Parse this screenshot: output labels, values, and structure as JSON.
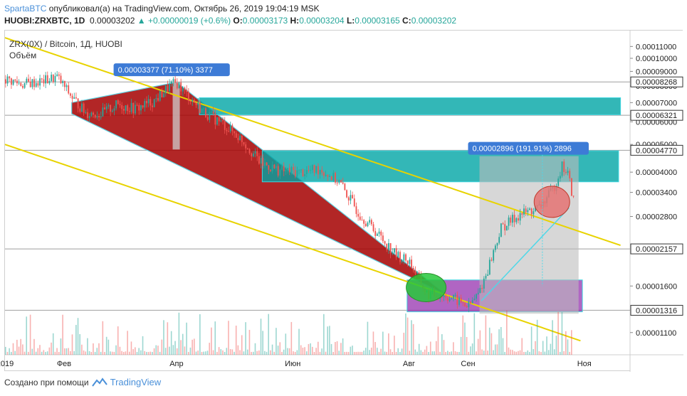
{
  "header": {
    "author": "SpartaBTC",
    "published_text": "опубликовал(а) на TradingView.com, Октябрь 26, 2019 19:04:19 MSK",
    "symbol": "HUOBI:ZRXBTC, 1D",
    "last_price": "0.00003202",
    "change": "▲ +0.00000019 (+0.6%)",
    "o_label": "O:",
    "o_value": "0.00003173",
    "h_label": "H:",
    "h_value": "0.00003204",
    "l_label": "L:",
    "l_value": "0.00003165",
    "c_label": "C:",
    "c_value": "0.00003202"
  },
  "legend": {
    "title": "ZRX(0X) / Bitcoin, 1Д, HUOBI",
    "volume": "Объём"
  },
  "footer": {
    "created_with": "Создано при помощи",
    "brand": "TradingView"
  },
  "colors": {
    "bull": "#26a69a",
    "bear": "#ef5350",
    "trendline": "#e8d300",
    "channel_fill": "#a50000",
    "zone_fill": "#00a5a5",
    "zone_border": "#3fd6e0",
    "purple_zone": "#8e24aa",
    "label_bg": "#3d7bd6"
  },
  "chart_data": {
    "type": "candlestick",
    "scale": "log",
    "title": "ZRX(0X) / Bitcoin, 1Д, HUOBI",
    "x_axis": {
      "start": "2019-01-01",
      "end": "2019-11-25",
      "tick_labels": [
        "2019",
        "Фев",
        "Апр",
        "Июн",
        "Авг",
        "Сен",
        "Ноя"
      ],
      "tick_dates": [
        "2019-01-01",
        "2019-02-01",
        "2019-04-01",
        "2019-06-01",
        "2019-08-01",
        "2019-09-01",
        "2019-11-01"
      ]
    },
    "y_axis": {
      "range": [
        9.2e-06,
        0.000125
      ],
      "ticks": [
        "0.00011000",
        "0.00010000",
        "0.00009000",
        "0.00008000",
        "0.00007000",
        "0.00006000",
        "0.00005000",
        "0.00004000",
        "0.00003400",
        "0.00002800",
        "0.00001600",
        "0.00001100"
      ],
      "highlighted_levels": [
        "0.00008268",
        "0.00006321",
        "0.00004770",
        "0.00002157",
        "0.00001316"
      ]
    },
    "price_path": [
      {
        "date": "2019-01-01",
        "close": 8.45e-05
      },
      {
        "date": "2019-01-10",
        "close": 8.12e-05
      },
      {
        "date": "2019-01-20",
        "close": 8.3e-05
      },
      {
        "date": "2019-01-28",
        "close": 8.6e-05
      },
      {
        "date": "2019-02-05",
        "close": 7.28e-05
      },
      {
        "date": "2019-02-12",
        "close": 6.45e-05
      },
      {
        "date": "2019-02-20",
        "close": 6.4e-05
      },
      {
        "date": "2019-03-01",
        "close": 6.9e-05
      },
      {
        "date": "2019-03-10",
        "close": 6.65e-05
      },
      {
        "date": "2019-03-20",
        "close": 7.1e-05
      },
      {
        "date": "2019-03-28",
        "close": 8e-05
      },
      {
        "date": "2019-04-01",
        "close": 8.2e-05
      },
      {
        "date": "2019-04-05",
        "close": 7.6e-05
      },
      {
        "date": "2019-04-15",
        "close": 6.5e-05
      },
      {
        "date": "2019-04-25",
        "close": 5.9e-05
      },
      {
        "date": "2019-05-05",
        "close": 5.2e-05
      },
      {
        "date": "2019-05-15",
        "close": 4.3e-05
      },
      {
        "date": "2019-05-25",
        "close": 4.05e-05
      },
      {
        "date": "2019-06-05",
        "close": 4e-05
      },
      {
        "date": "2019-06-15",
        "close": 4.1e-05
      },
      {
        "date": "2019-06-25",
        "close": 3.7e-05
      },
      {
        "date": "2019-07-05",
        "close": 2.9e-05
      },
      {
        "date": "2019-07-15",
        "close": 2.45e-05
      },
      {
        "date": "2019-07-25",
        "close": 2.05e-05
      },
      {
        "date": "2019-08-01",
        "close": 1.95e-05
      },
      {
        "date": "2019-08-10",
        "close": 1.5e-05
      },
      {
        "date": "2019-08-20",
        "close": 1.48e-05
      },
      {
        "date": "2019-08-28",
        "close": 1.4e-05
      },
      {
        "date": "2019-09-01",
        "close": 1.36e-05
      },
      {
        "date": "2019-09-06",
        "close": 1.5e-05
      },
      {
        "date": "2019-09-10",
        "close": 1.75e-05
      },
      {
        "date": "2019-09-18",
        "close": 2.55e-05
      },
      {
        "date": "2019-09-28",
        "close": 2.85e-05
      },
      {
        "date": "2019-10-08",
        "close": 3e-05
      },
      {
        "date": "2019-10-15",
        "close": 3.45e-05
      },
      {
        "date": "2019-10-20",
        "close": 4.2e-05
      },
      {
        "date": "2019-10-23",
        "close": 3.95e-05
      },
      {
        "date": "2019-10-26",
        "close": 3.2e-05
      }
    ],
    "annotations": [
      {
        "type": "label",
        "text": "0.00003377 (71.10%) 3377"
      },
      {
        "type": "label",
        "text": "0.00002896 (191.91%) 2896"
      },
      {
        "type": "zone",
        "name": "resistance-zone-upper",
        "from": 6.35e-05,
        "to": 7.28e-05
      },
      {
        "type": "zone",
        "name": "resistance-zone-middle",
        "from": 3.7e-05,
        "to": 4.75e-05
      },
      {
        "type": "zone",
        "name": "support-zone-purple",
        "from": 1.3e-05,
        "to": 1.68e-05
      }
    ]
  }
}
